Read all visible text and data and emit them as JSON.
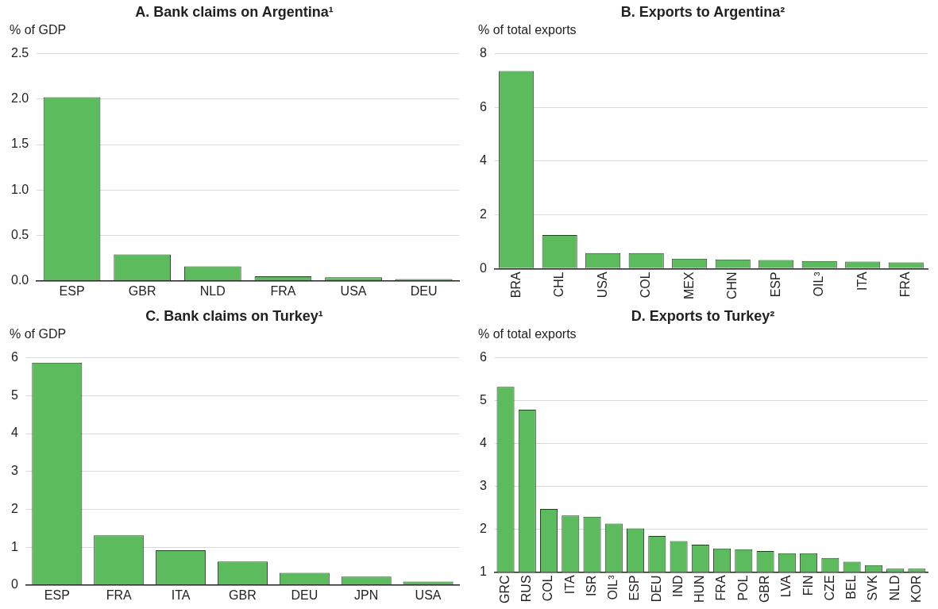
{
  "chart_data": [
    {
      "type": "bar",
      "title": "A. Bank claims on Argentina¹",
      "ylabel": "% of GDP",
      "categories": [
        "ESP",
        "GBR",
        "NLD",
        "FRA",
        "USA",
        "DEU"
      ],
      "values": [
        2.02,
        0.29,
        0.16,
        0.05,
        0.04,
        0.02
      ],
      "color": "#5cbb5c",
      "ylim": [
        0,
        2.5
      ],
      "yticks": [
        {
          "value": 0,
          "label": "0.0"
        },
        {
          "value": 0.5,
          "label": "0.5"
        },
        {
          "value": 1,
          "label": "1.0"
        },
        {
          "value": 1.5,
          "label": "1.5"
        },
        {
          "value": 2,
          "label": "2.0"
        },
        {
          "value": 2.5,
          "label": "2.5"
        }
      ],
      "grid": "y"
    },
    {
      "type": "bar",
      "title": "B. Exports to Argentina²",
      "ylabel": "% of total exports",
      "categories": [
        "BRA",
        "CHL",
        "USA",
        "COL",
        "MEX",
        "CHN",
        "ESP",
        "OIL³",
        "ITA",
        "FRA"
      ],
      "values": [
        7.35,
        1.25,
        0.58,
        0.58,
        0.37,
        0.34,
        0.32,
        0.28,
        0.26,
        0.23
      ],
      "color": "#5cbb5c",
      "ylim": [
        0,
        8
      ],
      "yticks": [
        0,
        2,
        4,
        6,
        8
      ],
      "grid": "y"
    },
    {
      "type": "bar",
      "title": "C. Bank claims on Turkey¹",
      "ylabel": "% of GDP",
      "categories": [
        "ESP",
        "FRA",
        "ITA",
        "GBR",
        "DEU",
        "JPN",
        "USA"
      ],
      "values": [
        5.87,
        1.31,
        0.92,
        0.62,
        0.32,
        0.22,
        0.09
      ],
      "color": "#5cbb5c",
      "ylim": [
        0,
        6
      ],
      "yticks": [
        0,
        1,
        2,
        3,
        4,
        5,
        6
      ],
      "grid": "y"
    },
    {
      "type": "bar",
      "title": "D. Exports to Turkey²",
      "ylabel": "% of total exports",
      "categories": [
        "GRC",
        "RUS",
        "COL",
        "ITA",
        "ISR",
        "OIL³",
        "ESP",
        "DEU",
        "IND",
        "HUN",
        "FRA",
        "POL",
        "GBR",
        "LVA",
        "FIN",
        "CZE",
        "BEL",
        "SVK",
        "NLD",
        "KOR"
      ],
      "values": [
        5.32,
        4.79,
        2.47,
        2.32,
        2.29,
        2.13,
        2.02,
        1.84,
        1.72,
        1.64,
        1.55,
        1.53,
        1.49,
        1.44,
        1.44,
        1.33,
        1.24,
        1.16,
        1.08,
        1.08
      ],
      "color": "#5cbb5c",
      "ylim": [
        1,
        6
      ],
      "yticks": [
        1,
        2,
        3,
        4,
        5,
        6
      ],
      "grid": "y"
    }
  ]
}
